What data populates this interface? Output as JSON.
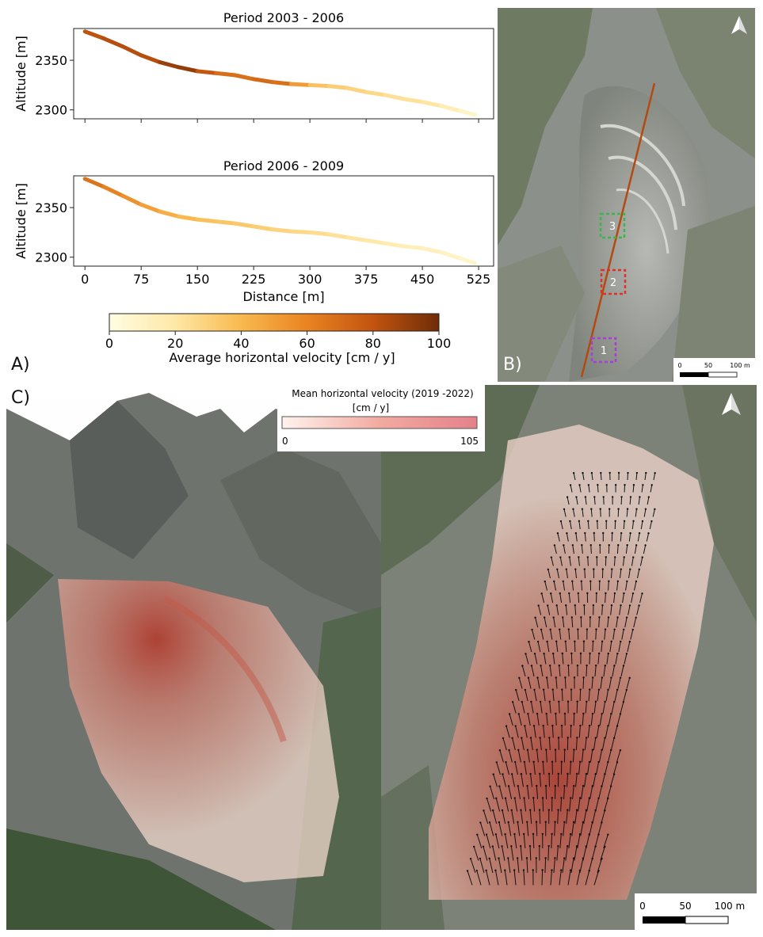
{
  "panels": {
    "a_label": "A)",
    "b_label": "B)",
    "c_label": "C)"
  },
  "chart_data": [
    {
      "type": "line",
      "title": "Period 2003 - 2006",
      "ylabel": "Altitude [m]",
      "ylim": [
        2291,
        2382
      ],
      "yticks": [
        "2300",
        "2350"
      ],
      "xlim": [
        -15,
        545
      ],
      "x": [
        0,
        25,
        50,
        75,
        100,
        125,
        150,
        175,
        200,
        225,
        250,
        275,
        300,
        325,
        350,
        375,
        400,
        425,
        450,
        475,
        500,
        520
      ],
      "altitude": [
        2379,
        2372,
        2364,
        2355,
        2348,
        2343,
        2339,
        2337,
        2335,
        2331,
        2328,
        2326,
        2325,
        2324,
        2322,
        2318,
        2315,
        2311,
        2308,
        2304,
        2299,
        2295
      ],
      "velocity": [
        80,
        82,
        84,
        82,
        84,
        95,
        88,
        70,
        68,
        68,
        74,
        62,
        40,
        32,
        30,
        28,
        25,
        22,
        24,
        18,
        12,
        6
      ]
    },
    {
      "type": "line",
      "title": "Period 2006 - 2009",
      "ylabel": "Altitude [m]",
      "xlabel": "Distance [m]",
      "ylim": [
        2291,
        2382
      ],
      "yticks": [
        "2300",
        "2350"
      ],
      "xlim": [
        -15,
        545
      ],
      "xticks": [
        "0",
        "75",
        "150",
        "225",
        "300",
        "375",
        "450",
        "525"
      ],
      "x": [
        0,
        25,
        50,
        75,
        100,
        125,
        150,
        175,
        200,
        225,
        250,
        275,
        300,
        325,
        350,
        375,
        400,
        425,
        450,
        475,
        500,
        520
      ],
      "altitude": [
        2379,
        2371,
        2362,
        2353,
        2346,
        2341,
        2338,
        2336,
        2334,
        2331,
        2328,
        2326,
        2325,
        2323,
        2320,
        2317,
        2314,
        2311,
        2309,
        2305,
        2299,
        2294
      ],
      "velocity": [
        70,
        64,
        58,
        52,
        46,
        42,
        38,
        36,
        34,
        32,
        30,
        28,
        26,
        24,
        22,
        20,
        18,
        15,
        13,
        11,
        9,
        7
      ]
    }
  ],
  "colorbar_a": {
    "label": "Average horizontal velocity [cm / y]",
    "ticks": [
      "0",
      "20",
      "40",
      "60",
      "80",
      "100"
    ]
  },
  "legend_c": {
    "title": "Mean horizontal velocity (2019 -2022)",
    "unit": "[cm / y]",
    "min": "0",
    "max": "105"
  },
  "map_b": {
    "boxes": [
      "3",
      "2",
      "1"
    ],
    "box_colors": [
      "#3bb54a",
      "#e0302a",
      "#a63fd6"
    ],
    "scalebar": [
      "0",
      "50",
      "100 m"
    ]
  },
  "map_c": {
    "scalebar": [
      "0",
      "50",
      "100 m"
    ]
  },
  "icons": [
    "north-arrow-icon"
  ]
}
